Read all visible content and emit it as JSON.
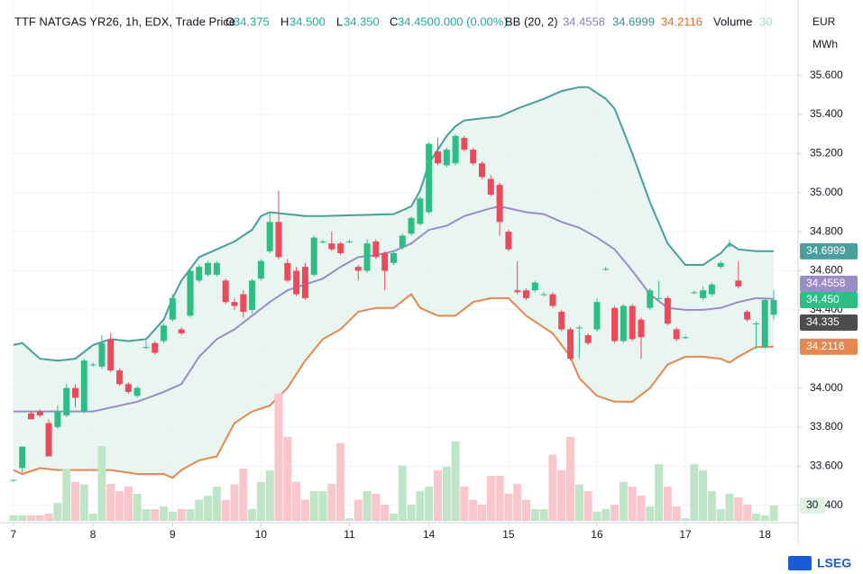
{
  "chart_data": {
    "type": "candlestick",
    "legend": {
      "symbol": "TTF NATGAS YR26, 1h, EDX, Trade Price",
      "o_label": "O",
      "o": "34.375",
      "h_label": "H",
      "h": "34.500",
      "l_label": "L",
      "l": "34.350",
      "c_label": "C",
      "c": "34.450",
      "change": "0.000 (0.00%)",
      "bb": "BB (20, 2)",
      "volume": "Volume"
    },
    "currency": "EUR",
    "unit": "MWh",
    "brand": "LSEG",
    "up_color": "#2ebd85",
    "down_color": "#ec4a5b",
    "up_volume_color": "#bfe5c6",
    "down_volume_color": "#f8c6cb",
    "grid": true,
    "xlim": [
      -0.5,
      88.75
    ],
    "xticks": [
      {
        "value": 0,
        "label": "7"
      },
      {
        "value": 9,
        "label": "8"
      },
      {
        "value": 18,
        "label": "9"
      },
      {
        "value": 28,
        "label": "10"
      },
      {
        "value": 38,
        "label": "11"
      },
      {
        "value": 47,
        "label": "14"
      },
      {
        "value": 56,
        "label": "15"
      },
      {
        "value": 66,
        "label": "16"
      },
      {
        "value": 76,
        "label": "17"
      },
      {
        "value": 85,
        "label": "18"
      }
    ],
    "ylim": [
      33.32,
      35.94
    ],
    "yticks": [
      {
        "value": 33.4,
        "label": "33.400"
      },
      {
        "value": 33.6,
        "label": "33.600"
      },
      {
        "value": 33.8,
        "label": "33.800"
      },
      {
        "value": 34.0,
        "label": "34.000"
      },
      {
        "value": 34.2,
        "label": "34.200"
      },
      {
        "value": 34.4,
        "label": "34.400"
      },
      {
        "value": 34.6,
        "label": "34.600"
      },
      {
        "value": 34.8,
        "label": "34.800"
      },
      {
        "value": 35.0,
        "label": "35.000"
      },
      {
        "value": 35.2,
        "label": "35.200"
      },
      {
        "value": 35.4,
        "label": "35.400"
      },
      {
        "value": 35.6,
        "label": "35.600"
      }
    ],
    "volume_ylim": [
      0,
      1000
    ],
    "ohlc": [
      [
        33.53,
        33.53,
        33.52,
        33.53
      ],
      [
        33.59,
        33.7,
        33.57,
        33.7
      ],
      [
        33.87,
        33.88,
        33.84,
        33.84
      ],
      [
        33.88,
        33.89,
        33.85,
        33.86
      ],
      [
        33.82,
        33.84,
        33.65,
        33.65
      ],
      [
        33.8,
        33.91,
        33.79,
        33.88
      ],
      [
        33.86,
        34.02,
        33.85,
        34.0
      ],
      [
        34.0,
        34.02,
        33.9,
        33.95
      ],
      [
        33.88,
        34.15,
        33.87,
        34.14
      ],
      [
        34.12,
        34.13,
        34.11,
        34.12
      ],
      [
        34.11,
        34.27,
        34.1,
        34.23
      ],
      [
        34.25,
        34.28,
        34.08,
        34.09
      ],
      [
        34.09,
        34.1,
        34.01,
        34.02
      ],
      [
        34.02,
        34.03,
        33.97,
        33.98
      ],
      [
        33.96,
        34.01,
        33.95,
        34.0
      ],
      [
        34.21,
        34.24,
        34.2,
        34.21
      ],
      [
        34.23,
        34.24,
        34.17,
        34.18
      ],
      [
        34.24,
        34.33,
        34.23,
        34.32
      ],
      [
        34.35,
        34.48,
        34.34,
        34.46
      ],
      [
        34.3,
        34.31,
        34.27,
        34.28
      ],
      [
        34.37,
        34.61,
        34.36,
        34.6
      ],
      [
        34.55,
        34.63,
        34.54,
        34.62
      ],
      [
        34.58,
        34.65,
        34.57,
        34.64
      ],
      [
        34.58,
        34.65,
        34.57,
        34.64
      ],
      [
        34.55,
        34.56,
        34.43,
        34.44
      ],
      [
        34.44,
        34.46,
        34.4,
        34.42
      ],
      [
        34.48,
        34.5,
        34.36,
        34.39
      ],
      [
        34.4,
        34.56,
        34.38,
        34.55
      ],
      [
        34.56,
        34.66,
        34.55,
        34.65
      ],
      [
        34.7,
        34.9,
        34.69,
        34.85
      ],
      [
        34.85,
        35.01,
        34.66,
        34.67
      ],
      [
        34.64,
        34.66,
        34.54,
        34.55
      ],
      [
        34.6,
        34.62,
        34.47,
        34.48
      ],
      [
        34.62,
        34.64,
        34.45,
        34.46
      ],
      [
        34.58,
        34.78,
        34.57,
        34.77
      ],
      [
        34.75,
        34.76,
        34.74,
        34.75
      ],
      [
        34.74,
        34.8,
        34.7,
        34.71
      ],
      [
        34.74,
        34.75,
        34.68,
        34.69
      ],
      [
        34.75,
        34.76,
        34.74,
        34.75
      ],
      [
        34.62,
        34.63,
        34.55,
        34.6
      ],
      [
        34.6,
        34.76,
        34.59,
        34.74
      ],
      [
        34.75,
        34.76,
        34.66,
        34.67
      ],
      [
        34.69,
        34.7,
        34.5,
        34.6
      ],
      [
        34.64,
        34.7,
        34.63,
        34.69
      ],
      [
        34.72,
        34.79,
        34.71,
        34.78
      ],
      [
        34.79,
        34.88,
        34.78,
        34.87
      ],
      [
        34.84,
        34.98,
        34.83,
        34.97
      ],
      [
        34.9,
        35.26,
        34.89,
        35.25
      ],
      [
        35.21,
        35.28,
        35.14,
        35.15
      ],
      [
        35.14,
        35.23,
        35.13,
        35.22
      ],
      [
        35.15,
        35.3,
        35.14,
        35.29
      ],
      [
        35.28,
        35.29,
        35.21,
        35.22
      ],
      [
        35.22,
        35.23,
        35.14,
        35.15
      ],
      [
        35.15,
        35.16,
        35.07,
        35.08
      ],
      [
        35.07,
        35.09,
        34.98,
        34.99
      ],
      [
        35.04,
        35.05,
        34.78,
        34.85
      ],
      [
        34.8,
        34.81,
        34.7,
        34.71
      ],
      [
        34.5,
        34.65,
        34.48,
        34.49
      ],
      [
        34.5,
        34.51,
        34.45,
        34.46
      ],
      [
        34.5,
        34.55,
        34.49,
        34.54
      ],
      [
        34.48,
        34.49,
        34.47,
        34.48
      ],
      [
        34.48,
        34.49,
        34.41,
        34.42
      ],
      [
        34.39,
        34.4,
        34.29,
        34.3
      ],
      [
        34.3,
        34.31,
        34.14,
        34.15
      ],
      [
        34.31,
        34.32,
        34.15,
        34.31
      ],
      [
        34.27,
        34.28,
        34.22,
        34.23
      ],
      [
        34.3,
        34.46,
        34.29,
        34.44
      ],
      [
        34.61,
        34.62,
        34.6,
        34.61
      ],
      [
        34.41,
        34.42,
        34.23,
        34.24
      ],
      [
        34.24,
        34.43,
        34.23,
        34.42
      ],
      [
        34.42,
        34.43,
        34.24,
        34.25
      ],
      [
        34.35,
        34.36,
        34.15,
        34.26
      ],
      [
        34.41,
        34.51,
        34.4,
        34.5
      ],
      [
        34.46,
        34.55,
        34.45,
        34.46
      ],
      [
        34.46,
        34.47,
        34.32,
        34.33
      ],
      [
        34.3,
        34.31,
        34.24,
        34.25
      ],
      [
        34.26,
        34.27,
        34.25,
        34.26
      ],
      [
        34.49,
        34.5,
        34.48,
        34.49
      ],
      [
        34.46,
        34.52,
        34.45,
        34.5
      ],
      [
        34.48,
        34.54,
        34.47,
        34.53
      ],
      [
        34.62,
        34.65,
        34.61,
        34.64
      ],
      [
        34.73,
        34.76,
        34.72,
        34.73
      ],
      [
        34.55,
        34.65,
        34.51,
        34.52
      ],
      [
        34.39,
        34.4,
        34.34,
        34.35
      ],
      [
        34.33,
        34.34,
        34.2,
        34.33
      ],
      [
        34.21,
        34.46,
        34.2,
        34.45
      ],
      [
        34.375,
        34.5,
        34.35,
        34.45
      ]
    ],
    "volume": [
      11,
      11,
      11,
      11,
      14,
      35,
      102,
      76,
      71,
      14,
      146,
      72,
      58,
      67,
      53,
      23,
      23,
      28,
      18,
      23,
      23,
      41,
      49,
      67,
      41,
      71,
      102,
      23,
      76,
      99,
      249,
      164,
      76,
      41,
      58,
      58,
      72,
      152,
      5,
      41,
      58,
      53,
      32,
      14,
      108,
      32,
      58,
      67,
      99,
      106,
      155,
      67,
      41,
      32,
      88,
      88,
      53,
      72,
      41,
      23,
      23,
      129,
      99,
      164,
      71,
      58,
      18,
      23,
      32,
      76,
      67,
      49,
      28,
      111,
      67,
      28,
      5,
      111,
      99,
      58,
      23,
      53,
      46,
      32,
      14,
      11,
      30
    ],
    "band_fill": "#e3f2ec",
    "bb_upper": {
      "color": "#4a9e9c",
      "x": [
        0,
        1,
        3,
        5,
        7,
        9,
        11,
        13,
        15,
        17,
        18,
        19,
        20,
        21,
        23,
        25,
        27,
        28,
        29,
        31,
        33,
        35,
        43,
        45,
        46,
        47,
        48,
        49,
        50,
        51,
        53,
        55,
        57,
        60,
        62,
        64,
        65,
        67,
        68,
        70,
        72,
        74,
        76,
        78,
        80,
        81,
        82,
        84,
        86
      ],
      "values": [
        34.22,
        34.23,
        34.15,
        34.14,
        34.15,
        34.22,
        34.25,
        34.24,
        34.25,
        34.35,
        34.46,
        34.55,
        34.61,
        34.67,
        34.71,
        34.75,
        34.81,
        34.88,
        34.9,
        34.89,
        34.88,
        34.88,
        34.89,
        34.93,
        35.01,
        35.15,
        35.22,
        35.29,
        35.34,
        35.37,
        35.38,
        35.39,
        35.43,
        35.48,
        35.52,
        35.54,
        35.54,
        35.48,
        35.43,
        35.2,
        34.95,
        34.74,
        34.63,
        34.63,
        34.69,
        34.74,
        34.71,
        34.7,
        34.6999
      ]
    },
    "bb_middle": {
      "color": "#9a8cc6",
      "x": [
        0,
        5,
        9,
        11,
        14,
        17,
        19,
        21,
        23,
        25,
        27,
        29,
        31,
        33,
        35,
        37,
        39,
        41,
        43,
        45,
        47,
        49,
        51,
        54,
        55,
        58,
        60,
        62,
        64,
        66,
        68,
        70,
        72,
        74,
        76,
        78,
        80,
        82,
        84,
        86
      ],
      "values": [
        33.88,
        33.88,
        33.88,
        33.9,
        33.93,
        33.98,
        34.02,
        34.16,
        34.25,
        34.3,
        34.37,
        34.44,
        34.5,
        34.53,
        34.56,
        34.62,
        34.67,
        34.68,
        34.7,
        34.74,
        34.81,
        34.83,
        34.88,
        34.92,
        34.93,
        34.9,
        34.89,
        34.85,
        34.82,
        34.77,
        34.71,
        34.6,
        34.48,
        34.41,
        34.4,
        34.4,
        34.41,
        34.44,
        34.46,
        34.4558
      ]
    },
    "bb_lower": {
      "color": "#e5874e",
      "x": [
        0,
        1,
        3,
        5,
        9,
        11,
        14,
        17,
        18,
        19,
        21,
        23,
        25,
        27,
        29,
        31,
        33,
        35,
        37,
        39,
        41,
        43,
        45,
        46,
        48,
        50,
        52,
        54,
        56,
        58,
        61,
        63,
        64,
        66,
        68,
        70,
        72,
        74,
        76,
        78,
        80,
        81,
        82,
        84,
        86
      ],
      "values": [
        33.58,
        33.56,
        33.59,
        33.58,
        33.58,
        33.58,
        33.56,
        33.56,
        33.54,
        33.58,
        33.63,
        33.65,
        33.82,
        33.88,
        33.91,
        34.0,
        34.14,
        34.25,
        34.3,
        34.39,
        34.41,
        34.41,
        34.48,
        34.41,
        34.37,
        34.37,
        34.44,
        34.46,
        34.46,
        34.37,
        34.28,
        34.16,
        34.05,
        33.96,
        33.93,
        33.93,
        34.0,
        34.12,
        34.16,
        34.16,
        34.15,
        34.13,
        34.16,
        34.21,
        34.2116
      ]
    },
    "price_markers": [
      {
        "value": 34.45,
        "label": "34.450",
        "color": "#2ebd85"
      },
      {
        "value": 34.335,
        "label": "34.335",
        "color": "#4d4d4d"
      }
    ]
  }
}
